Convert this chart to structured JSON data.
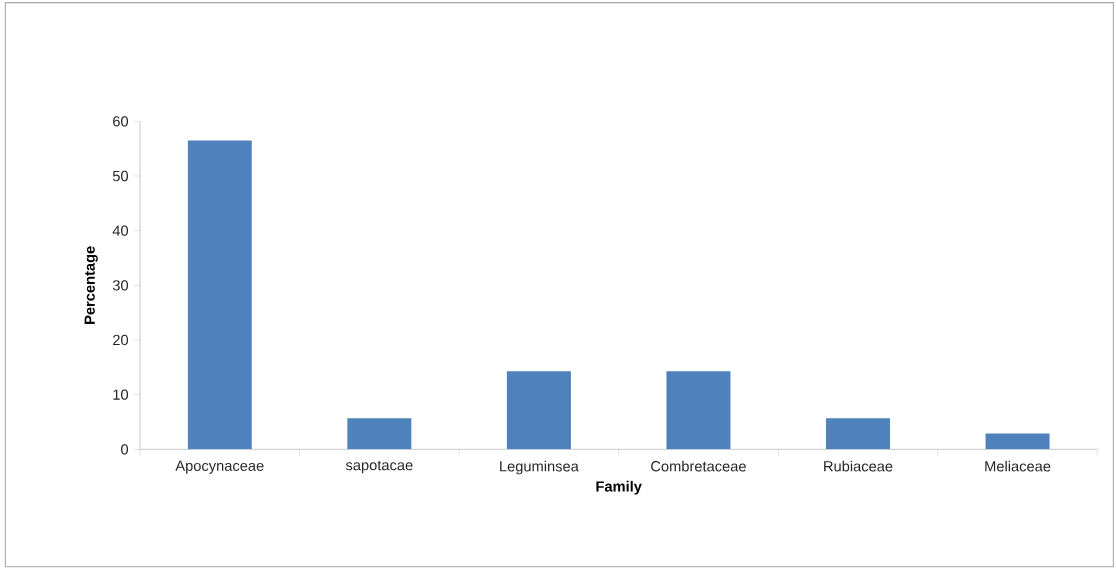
{
  "chart_data": {
    "type": "bar",
    "xlabel": "Family",
    "ylabel": "Percentage",
    "categories": [
      "Apocynaceae",
      "sapotacae",
      "Leguminsea",
      "Combretaceae",
      "Rubiaceae",
      "Meliaceae"
    ],
    "values": [
      56.5,
      5.7,
      14.3,
      14.3,
      5.7,
      2.9
    ],
    "color": "#4f81bd",
    "ylim": [
      0,
      60
    ],
    "yticks": [
      0,
      10,
      20,
      30,
      40,
      50,
      60
    ],
    "grid": false,
    "legend": false
  }
}
